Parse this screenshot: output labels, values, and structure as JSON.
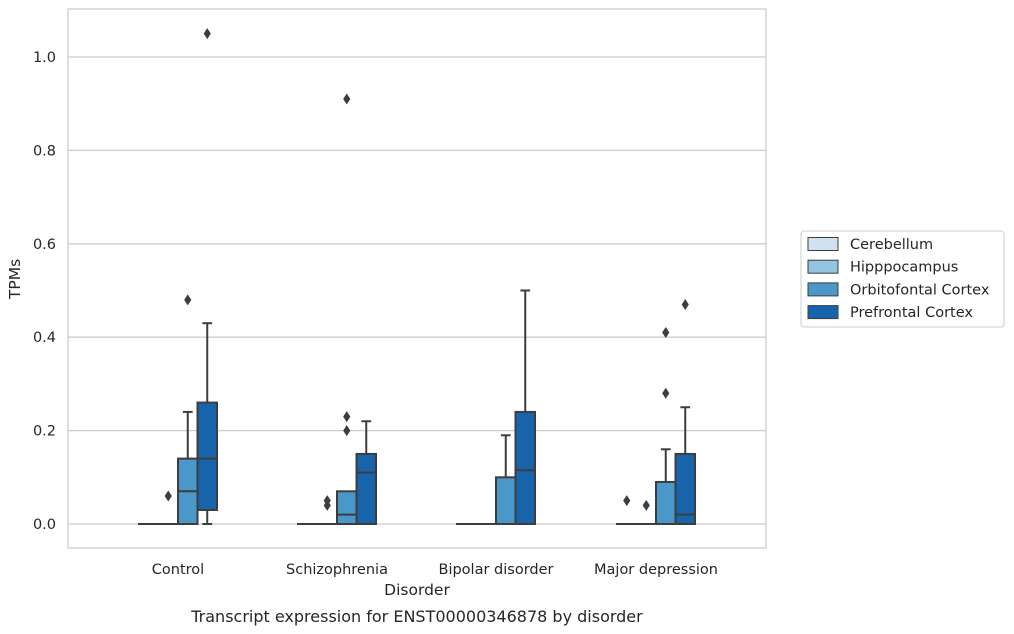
{
  "chart_data": {
    "type": "box",
    "caption": "Transcript expression for ENST00000346878 by disorder",
    "xlabel": "Disorder",
    "ylabel": "TPMs",
    "ylim": [
      -0.05,
      1.1
    ],
    "yticks": [
      0.0,
      0.2,
      0.4,
      0.6,
      0.8,
      1.0
    ],
    "ytick_labels": [
      "0.0",
      "0.2",
      "0.4",
      "0.6",
      "0.8",
      "1.0"
    ],
    "grid": true,
    "legend_position": "right",
    "categories": [
      "Control",
      "Schizophrenia",
      "Bipolar disorder",
      "Major depression"
    ],
    "series": [
      {
        "name": "Cerebellum",
        "color": "#d0e1f2",
        "boxes": [
          {
            "q1": 0,
            "median": 0,
            "q3": 0,
            "whislo": 0,
            "whishi": 0,
            "fliers": []
          },
          {
            "q1": 0,
            "median": 0,
            "q3": 0,
            "whislo": 0,
            "whishi": 0,
            "fliers": []
          },
          {
            "q1": 0,
            "median": 0,
            "q3": 0,
            "whislo": 0,
            "whishi": 0,
            "fliers": []
          },
          {
            "q1": 0,
            "median": 0,
            "q3": 0,
            "whislo": 0,
            "whishi": 0,
            "fliers": [
              0.05
            ]
          }
        ]
      },
      {
        "name": "Hipppocampus",
        "color": "#94c4df",
        "boxes": [
          {
            "q1": 0,
            "median": 0,
            "q3": 0,
            "whislo": 0,
            "whishi": 0,
            "fliers": [
              0.06
            ]
          },
          {
            "q1": 0,
            "median": 0,
            "q3": 0,
            "whislo": 0,
            "whishi": 0,
            "fliers": [
              0.04,
              0.05
            ]
          },
          {
            "q1": 0,
            "median": 0,
            "q3": 0,
            "whislo": 0,
            "whishi": 0,
            "fliers": []
          },
          {
            "q1": 0,
            "median": 0,
            "q3": 0,
            "whislo": 0,
            "whishi": 0,
            "fliers": [
              0.04
            ]
          }
        ]
      },
      {
        "name": "Orbitofontal Cortex",
        "color": "#4a98c9",
        "boxes": [
          {
            "q1": 0,
            "median": 0.07,
            "q3": 0.14,
            "whislo": 0,
            "whishi": 0.24,
            "fliers": [
              0.48
            ]
          },
          {
            "q1": 0,
            "median": 0.02,
            "q3": 0.07,
            "whislo": 0,
            "whishi": 0.07,
            "fliers": [
              0.2,
              0.23,
              0.91
            ]
          },
          {
            "q1": 0,
            "median": 0,
            "q3": 0.1,
            "whislo": 0,
            "whishi": 0.19,
            "fliers": []
          },
          {
            "q1": 0,
            "median": 0,
            "q3": 0.09,
            "whislo": 0,
            "whishi": 0.16,
            "fliers": [
              0.28,
              0.41
            ]
          }
        ]
      },
      {
        "name": "Prefrontal Cortex",
        "color": "#1764ab",
        "boxes": [
          {
            "q1": 0.03,
            "median": 0.14,
            "q3": 0.26,
            "whislo": 0,
            "whishi": 0.43,
            "fliers": [
              1.05
            ]
          },
          {
            "q1": 0,
            "median": 0.11,
            "q3": 0.15,
            "whislo": 0,
            "whishi": 0.22,
            "fliers": []
          },
          {
            "q1": 0,
            "median": 0.115,
            "q3": 0.24,
            "whislo": 0,
            "whishi": 0.5,
            "fliers": []
          },
          {
            "q1": 0,
            "median": 0.02,
            "q3": 0.15,
            "whislo": 0,
            "whishi": 0.25,
            "fliers": [
              0.47
            ]
          }
        ]
      }
    ]
  }
}
